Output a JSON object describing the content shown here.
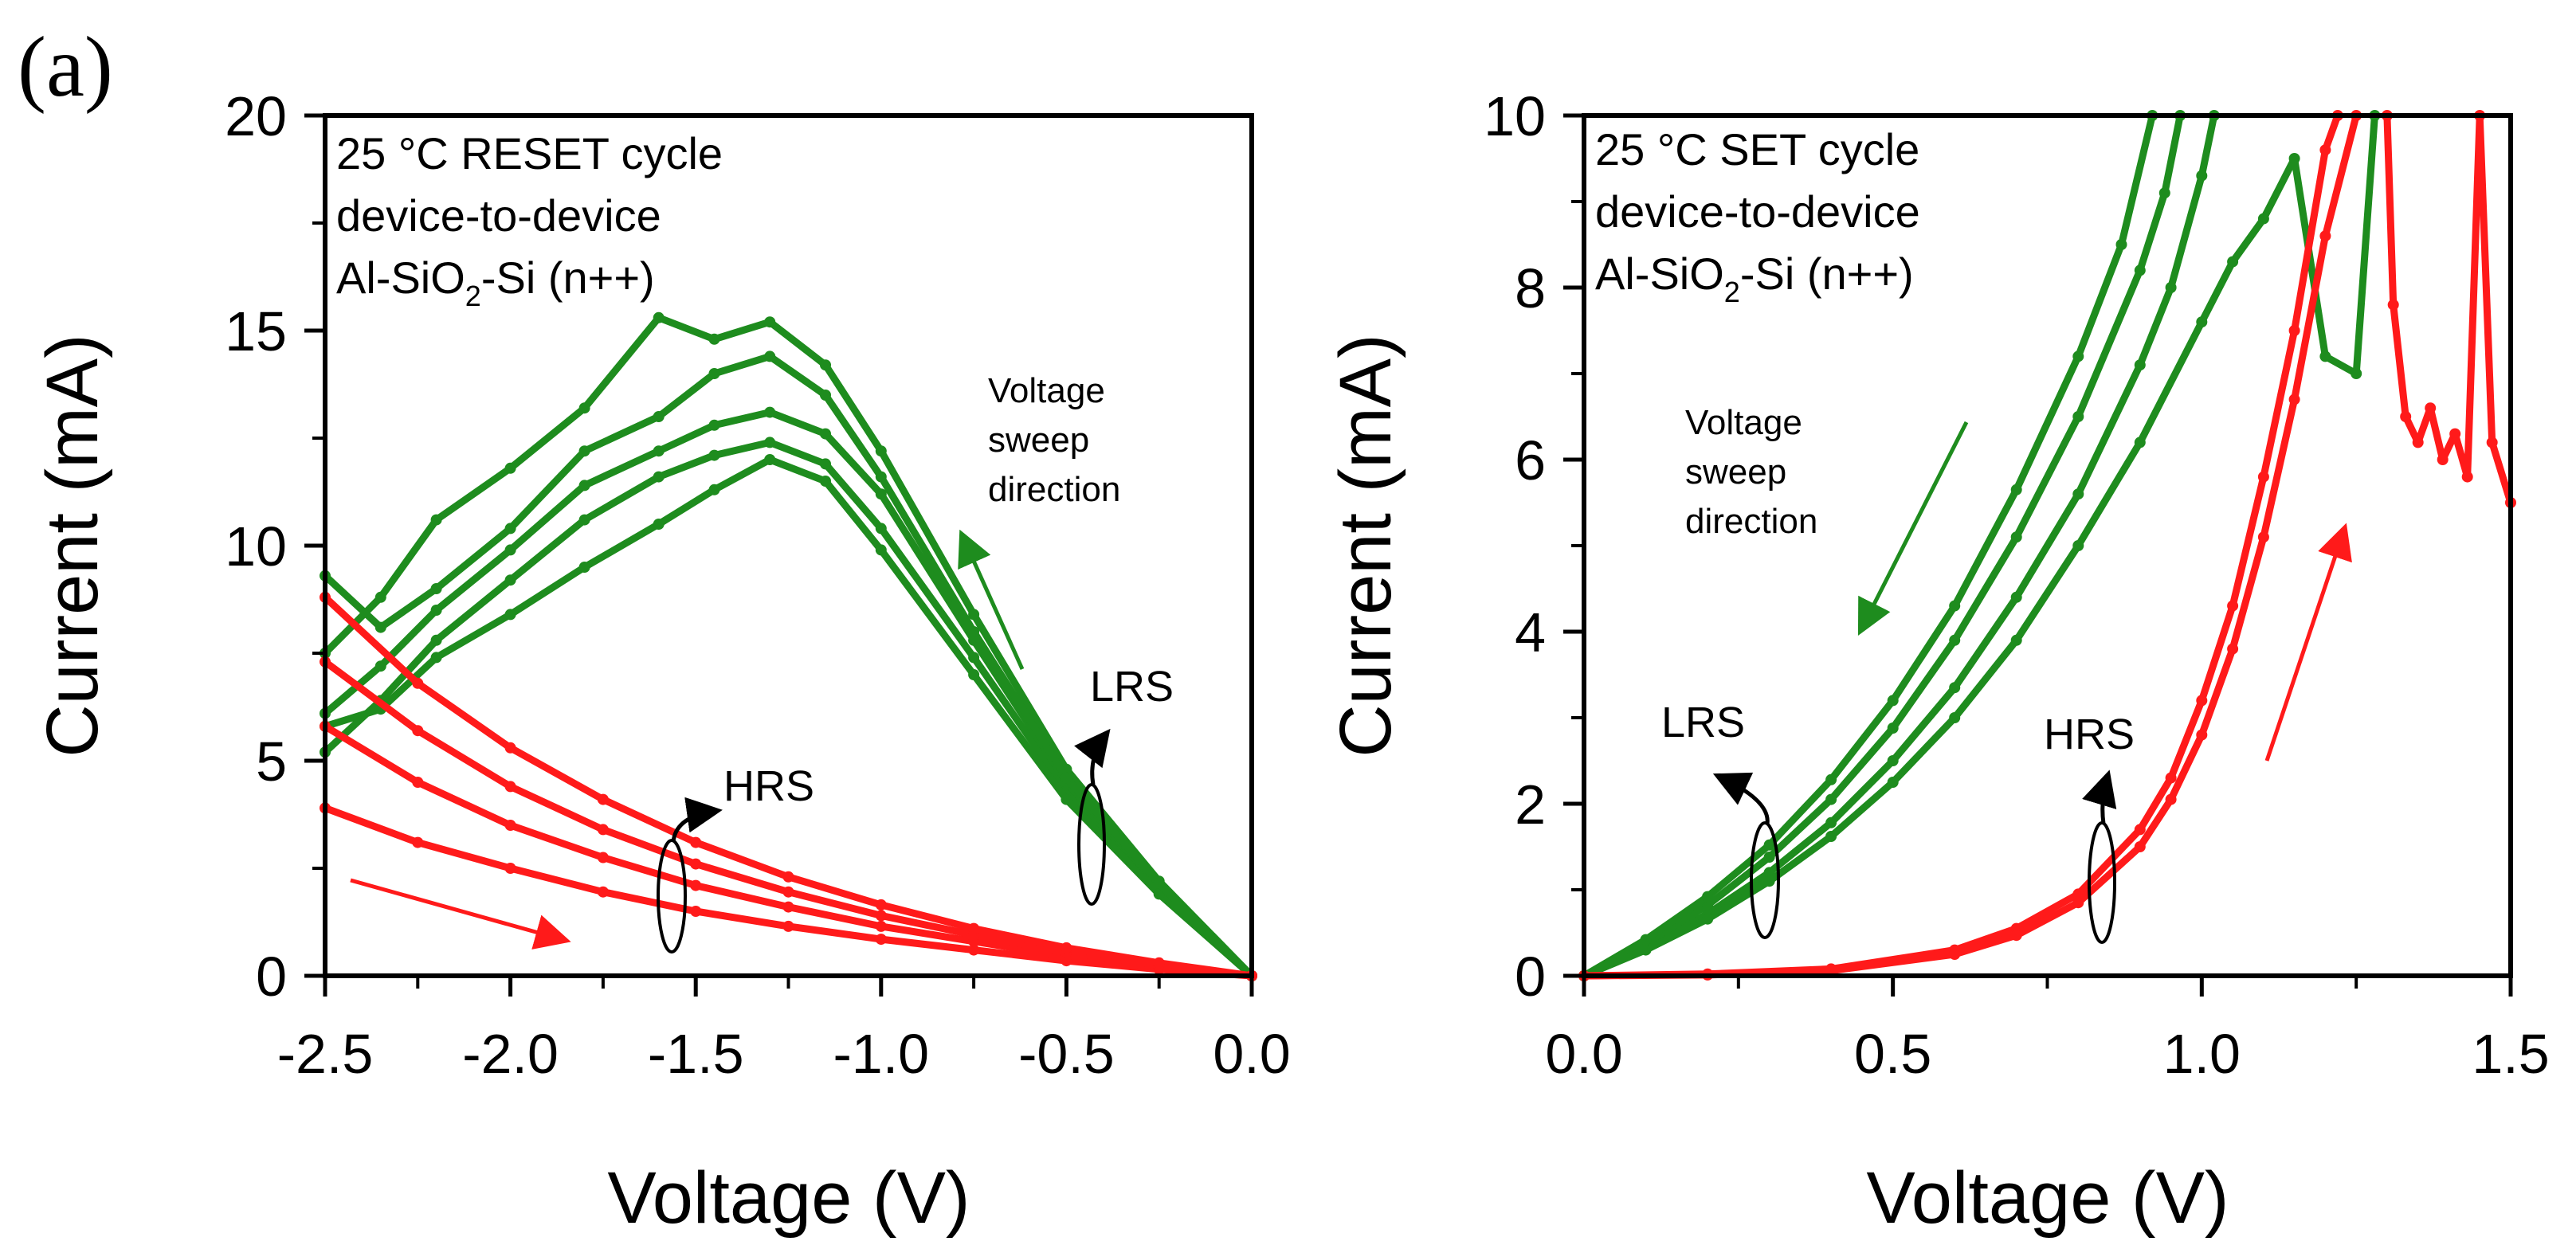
{
  "panel_label": "(a)",
  "colors": {
    "green": "#1e8c1e",
    "red": "#ff1a1a",
    "axis": "#000000"
  },
  "chart_data": [
    {
      "type": "line",
      "xlabel": "Voltage (V)",
      "ylabel": "Current (mA)",
      "xlim": [
        -2.5,
        0.0
      ],
      "ylim": [
        0,
        20
      ],
      "xticks": [
        -2.5,
        -2.0,
        -1.5,
        -1.0,
        -0.5,
        0.0
      ],
      "xtick_labels": [
        "-2.5",
        "-2.0",
        "-1.5",
        "-1.0",
        "-0.5",
        "0.0"
      ],
      "yticks": [
        0,
        5,
        10,
        15,
        20
      ],
      "ytick_labels": [
        "0",
        "5",
        "10",
        "15",
        "20"
      ],
      "info_lines": [
        "25 °C RESET cycle",
        "device-to-device"
      ],
      "material": {
        "pre": "Al-SiO",
        "sub": "2",
        "post": "-Si (n++)"
      },
      "sweep_text": [
        "Voltage",
        "sweep",
        "direction"
      ],
      "states": {
        "lrs": "LRS",
        "hrs": "HRS"
      },
      "series": [
        {
          "state": "LRS",
          "color": "#1e8c1e",
          "x": [
            0,
            -0.25,
            -0.5,
            -0.75,
            -1.0,
            -1.15,
            -1.3,
            -1.45,
            -1.6,
            -1.8,
            -2.0,
            -2.2,
            -2.35,
            -2.5
          ],
          "y": [
            0,
            2.0,
            4.3,
            7.4,
            10.4,
            11.9,
            12.4,
            12.1,
            11.6,
            10.6,
            9.2,
            7.8,
            6.4,
            5.2
          ]
        },
        {
          "state": "LRS",
          "color": "#1e8c1e",
          "x": [
            0,
            -0.25,
            -0.5,
            -0.75,
            -1.0,
            -1.15,
            -1.3,
            -1.45,
            -1.6,
            -1.8,
            -2.0,
            -2.2,
            -2.35,
            -2.5
          ],
          "y": [
            0,
            2.1,
            4.5,
            7.8,
            11.2,
            12.6,
            13.1,
            12.8,
            12.2,
            11.4,
            9.9,
            8.5,
            7.2,
            6.1
          ]
        },
        {
          "state": "LRS",
          "color": "#1e8c1e",
          "x": [
            0,
            -0.25,
            -0.5,
            -0.75,
            -1.0,
            -1.15,
            -1.3,
            -1.45,
            -1.6,
            -1.8,
            -2.0,
            -2.2,
            -2.35,
            -2.5
          ],
          "y": [
            0,
            2.2,
            4.8,
            8.4,
            12.2,
            14.2,
            15.2,
            14.8,
            15.3,
            13.2,
            11.8,
            10.6,
            8.8,
            7.5
          ]
        },
        {
          "state": "LRS",
          "color": "#1e8c1e",
          "x": [
            0,
            -0.25,
            -0.5,
            -0.75,
            -1.0,
            -1.15,
            -1.3,
            -1.45,
            -1.6,
            -1.8,
            -2.0,
            -2.2,
            -2.35,
            -2.5
          ],
          "y": [
            0,
            1.9,
            4.1,
            7.0,
            9.9,
            11.5,
            12.0,
            11.3,
            10.5,
            9.5,
            8.4,
            7.4,
            6.2,
            5.8
          ]
        },
        {
          "state": "LRS",
          "color": "#1e8c1e",
          "x": [
            0,
            -0.25,
            -0.5,
            -0.75,
            -1.0,
            -1.15,
            -1.3,
            -1.45,
            -1.6,
            -1.8,
            -2.0,
            -2.2,
            -2.35,
            -2.5
          ],
          "y": [
            0,
            2.15,
            4.6,
            8.0,
            11.6,
            13.5,
            14.4,
            14.0,
            13.0,
            12.2,
            10.4,
            9.0,
            8.1,
            9.3
          ]
        },
        {
          "state": "HRS",
          "color": "#ff1a1a",
          "x": [
            0,
            -0.25,
            -0.5,
            -0.75,
            -1.0,
            -1.25,
            -1.5,
            -1.75,
            -2.0,
            -2.25,
            -2.5
          ],
          "y": [
            0,
            0.15,
            0.35,
            0.6,
            0.85,
            1.15,
            1.5,
            1.95,
            2.5,
            3.1,
            3.9
          ]
        },
        {
          "state": "HRS",
          "color": "#ff1a1a",
          "x": [
            0,
            -0.25,
            -0.5,
            -0.75,
            -1.0,
            -1.25,
            -1.5,
            -1.75,
            -2.0,
            -2.25,
            -2.5
          ],
          "y": [
            0,
            0.2,
            0.45,
            0.8,
            1.15,
            1.6,
            2.1,
            2.75,
            3.5,
            4.5,
            5.8
          ]
        },
        {
          "state": "HRS",
          "color": "#ff1a1a",
          "x": [
            0,
            -0.25,
            -0.5,
            -0.75,
            -1.0,
            -1.25,
            -1.5,
            -1.75,
            -2.0,
            -2.25,
            -2.5
          ],
          "y": [
            0,
            0.25,
            0.55,
            0.95,
            1.4,
            1.95,
            2.6,
            3.4,
            4.4,
            5.7,
            7.3
          ]
        },
        {
          "state": "HRS",
          "color": "#ff1a1a",
          "x": [
            0,
            -0.25,
            -0.5,
            -0.75,
            -1.0,
            -1.25,
            -1.5,
            -1.75,
            -2.0,
            -2.25,
            -2.5
          ],
          "y": [
            0,
            0.3,
            0.65,
            1.1,
            1.65,
            2.3,
            3.1,
            4.1,
            5.3,
            6.8,
            8.8
          ]
        }
      ]
    },
    {
      "type": "line",
      "xlabel": "Voltage (V)",
      "ylabel": "Current (mA)",
      "xlim": [
        0.0,
        1.5
      ],
      "ylim": [
        0,
        10
      ],
      "xticks": [
        0.0,
        0.5,
        1.0,
        1.5
      ],
      "xtick_labels": [
        "0.0",
        "0.5",
        "1.0",
        "1.5"
      ],
      "yticks": [
        0,
        2,
        4,
        6,
        8,
        10
      ],
      "ytick_labels": [
        "0",
        "2",
        "4",
        "6",
        "8",
        "10"
      ],
      "info_lines": [
        "25 °C SET cycle",
        "device-to-device"
      ],
      "material": {
        "pre": "Al-SiO",
        "sub": "2",
        "post": "-Si (n++)"
      },
      "sweep_text": [
        "Voltage",
        "sweep",
        "direction"
      ],
      "states": {
        "lrs": "LRS",
        "hrs": "HRS"
      },
      "series": [
        {
          "state": "LRS",
          "color": "#1e8c1e",
          "x": [
            0,
            0.1,
            0.2,
            0.3,
            0.4,
            0.5,
            0.6,
            0.7,
            0.8,
            0.9,
            0.95,
            1.0,
            1.02
          ],
          "y": [
            0,
            0.32,
            0.72,
            1.2,
            1.78,
            2.5,
            3.35,
            4.4,
            5.6,
            7.1,
            8.0,
            9.3,
            10.0
          ]
        },
        {
          "state": "LRS",
          "color": "#1e8c1e",
          "x": [
            0,
            0.1,
            0.2,
            0.3,
            0.4,
            0.5,
            0.6,
            0.7,
            0.8,
            0.9,
            0.94,
            0.965
          ],
          "y": [
            0,
            0.38,
            0.82,
            1.38,
            2.05,
            2.88,
            3.9,
            5.1,
            6.5,
            8.2,
            9.1,
            10.0
          ]
        },
        {
          "state": "LRS",
          "color": "#1e8c1e",
          "x": [
            0,
            0.1,
            0.2,
            0.3,
            0.4,
            0.5,
            0.6,
            0.7,
            0.8,
            0.87,
            0.92
          ],
          "y": [
            0,
            0.42,
            0.92,
            1.52,
            2.28,
            3.2,
            4.3,
            5.65,
            7.2,
            8.5,
            10.0
          ]
        },
        {
          "state": "LRS",
          "color": "#1e8c1e",
          "x": [
            0,
            0.1,
            0.2,
            0.3,
            0.4,
            0.5,
            0.6,
            0.7,
            0.8,
            0.9,
            1.0,
            1.05,
            1.1,
            1.15,
            1.2,
            1.25,
            1.28
          ],
          "y": [
            0,
            0.3,
            0.66,
            1.1,
            1.62,
            2.25,
            3.0,
            3.9,
            5.0,
            6.2,
            7.6,
            8.3,
            8.8,
            9.5,
            7.2,
            7.0,
            10.0
          ]
        },
        {
          "state": "HRS",
          "color": "#ff1a1a",
          "x": [
            0,
            0.2,
            0.4,
            0.6,
            0.7,
            0.8,
            0.9,
            0.95,
            1.0,
            1.05,
            1.1,
            1.15,
            1.2,
            1.22
          ],
          "y": [
            0,
            0.02,
            0.08,
            0.3,
            0.55,
            0.95,
            1.7,
            2.3,
            3.2,
            4.3,
            5.8,
            7.5,
            9.6,
            10.0
          ]
        },
        {
          "state": "HRS",
          "color": "#ff1a1a",
          "x": [
            0,
            0.2,
            0.4,
            0.6,
            0.7,
            0.8,
            0.9,
            0.95,
            1.0,
            1.05,
            1.1,
            1.15,
            1.2,
            1.25
          ],
          "y": [
            0,
            0.01,
            0.06,
            0.25,
            0.47,
            0.85,
            1.5,
            2.05,
            2.8,
            3.8,
            5.1,
            6.7,
            8.6,
            10.0
          ]
        },
        {
          "state": "HRS",
          "color": "#ff1a1a",
          "x": [
            1.3,
            1.31,
            1.33,
            1.35,
            1.37,
            1.39,
            1.41,
            1.43,
            1.45,
            1.47,
            1.5
          ],
          "y": [
            10.0,
            7.8,
            6.5,
            6.2,
            6.6,
            6.0,
            6.3,
            5.8,
            10.0,
            6.2,
            5.5
          ]
        }
      ]
    }
  ]
}
